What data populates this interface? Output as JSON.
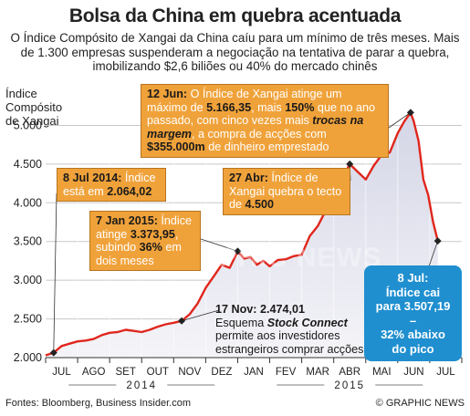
{
  "title": "Bolsa da China em quebra acentuada",
  "subtitle": "O Índice Compósito de Xangai da China caíu para um mínimo de três meses. Mais de 1.300 empresas suspenderam a negociação na tentativa de parar a quebra, imobilizando $2,6 biliões ou 40% do mercado chinês",
  "ylabel_lines": [
    "Índice",
    "Compósito",
    "de Xangai"
  ],
  "annotations": {
    "jun12": {
      "date": "12 Jun:",
      "t1": " O Índice de Xangai atinge um máximo de ",
      "b1": "5.166,35",
      "t2": ", mais ",
      "b2": "150%",
      "t3": " que no ano passado, com cinco vezes mais ",
      "i1": "trocas na margem",
      "t4": ", a compra de acções com ",
      "b3": "$355.000m",
      "t5": " de dinheiro emprestado"
    },
    "jul8_2014": {
      "date": "8 Jul 2014:",
      "t1": " Índice está em ",
      "b1": "2.064,02"
    },
    "apr27": {
      "date": "27 Abr:",
      "t1": " Índice de Xangai quebra o tecto de ",
      "b1": "4.500"
    },
    "jan7_2015": {
      "date": "7 Jan 2015:",
      "t1": " Índice atinge ",
      "b1": "3.373,95",
      "t2": ", subindo ",
      "b2": "36%",
      "t3": " em dois meses"
    },
    "nov17": {
      "date": "17 Nov: 2.474,01",
      "t1": "Esquema ",
      "i1": "Stock Connect",
      "t2": " permite aos investidores estrangeiros comprar acções"
    },
    "jul8": {
      "line1": "8 Jul:",
      "line2": "Índice cai",
      "line3": "para 3.507,19 –",
      "line4": "32% abaixo",
      "line5": "do pico"
    }
  },
  "footer": {
    "sources": "Fontes: Bloomberg, Business Insider.com",
    "credit": "© GRAPHIC NEWS"
  },
  "watermark": "GRAPHIC NEWS",
  "colors": {
    "line": "#e0261c",
    "fill_top": "#d4d6e6",
    "fill_bottom": "#f4f4f8",
    "annotation": "#f0a23a",
    "callout": "#1f8fd0",
    "grid": "#b0b0b0"
  },
  "chart_data": {
    "type": "area",
    "title": "Bolsa da China em quebra acentuada",
    "ylabel": "Índice Compósito de Xangai",
    "xlabel": "",
    "ylim": [
      2000,
      5300
    ],
    "yticks": [
      2000,
      2500,
      3000,
      3500,
      4000,
      4500,
      5000
    ],
    "ytick_labels": [
      "2.000",
      "2.500",
      "3.000",
      "3.500",
      "4.000",
      "4.500",
      "5.000"
    ],
    "xlim": [
      0,
      13
    ],
    "month_labels": [
      "JUL",
      "AGO",
      "SET",
      "OUT",
      "NOV",
      "DEZ",
      "JAN",
      "FEV",
      "MAR",
      "ABR",
      "MAI",
      "JUN",
      "JUL"
    ],
    "year_labels": [
      {
        "label": "2014",
        "month_start": 0,
        "month_end": 6
      },
      {
        "label": "2015",
        "month_start": 6,
        "month_end": 13
      }
    ],
    "grid": true,
    "series": [
      {
        "x": [
          0,
          0.25,
          0.5,
          0.75,
          1.0,
          1.25,
          1.5,
          1.75,
          2.0,
          2.25,
          2.5,
          2.75,
          3.0,
          3.25,
          3.5,
          3.75,
          4.0,
          4.25,
          4.5,
          4.75,
          5.0,
          5.25,
          5.5,
          5.75,
          6.0,
          6.2,
          6.4,
          6.6,
          6.8,
          7.0,
          7.25,
          7.5,
          7.75,
          8.0,
          8.25,
          8.5,
          8.75,
          9.0,
          9.25,
          9.5,
          9.75,
          10.0,
          10.25,
          10.5,
          10.75,
          11.0,
          11.2,
          11.4,
          11.5,
          11.65,
          11.8,
          11.95,
          12.1,
          12.25
        ],
        "y": [
          2030,
          2064,
          2150,
          2180,
          2210,
          2220,
          2240,
          2290,
          2320,
          2330,
          2360,
          2345,
          2330,
          2360,
          2400,
          2430,
          2450,
          2474,
          2560,
          2700,
          2900,
          3050,
          3200,
          3160,
          3374,
          3280,
          3300,
          3200,
          3250,
          3180,
          3260,
          3270,
          3310,
          3330,
          3570,
          3700,
          3900,
          4100,
          4300,
          4500,
          4400,
          4300,
          4480,
          4620,
          4650,
          4900,
          5050,
          5166,
          5050,
          4800,
          4300,
          4100,
          3760,
          3507
        ]
      }
    ]
  }
}
